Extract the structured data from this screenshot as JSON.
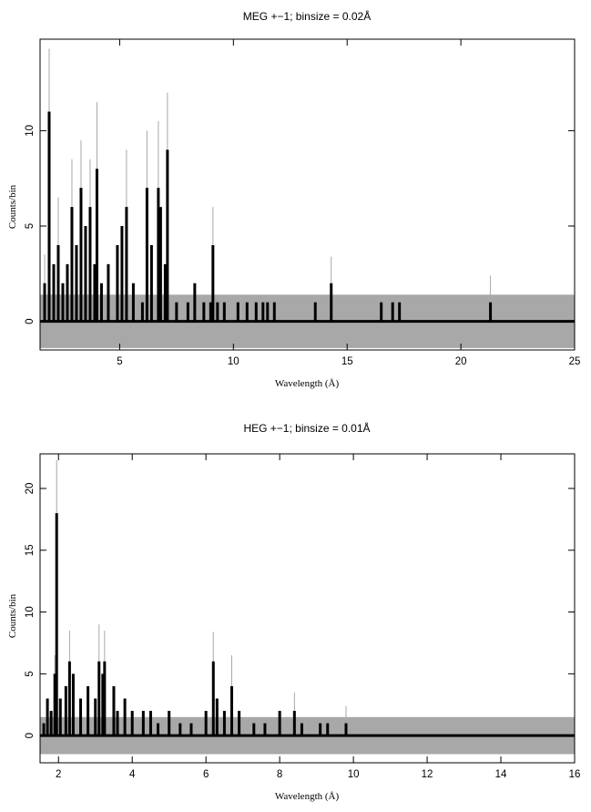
{
  "chart_data": [
    {
      "type": "line",
      "title": "MEG +−1; binsize = 0.02Å",
      "xlabel": "Wavelength (Å)",
      "ylabel": "Counts/bin",
      "xlim": [
        1.5,
        25
      ],
      "ylim": [
        -1.5,
        14.8
      ],
      "xticks": [
        5,
        10,
        15,
        20,
        25
      ],
      "yticks": [
        0,
        5,
        10
      ],
      "grid": false,
      "legend": "none",
      "series": [
        {
          "role": "counts",
          "style": "black step histogram",
          "points": [
            [
              1.7,
              2
            ],
            [
              1.9,
              11
            ],
            [
              2.1,
              3
            ],
            [
              2.3,
              4
            ],
            [
              2.5,
              2
            ],
            [
              2.7,
              3
            ],
            [
              2.9,
              6
            ],
            [
              3.1,
              4
            ],
            [
              3.3,
              7
            ],
            [
              3.5,
              5
            ],
            [
              3.7,
              6
            ],
            [
              3.9,
              3
            ],
            [
              4.0,
              8
            ],
            [
              4.2,
              2
            ],
            [
              4.5,
              3
            ],
            [
              4.9,
              4
            ],
            [
              5.1,
              5
            ],
            [
              5.3,
              6
            ],
            [
              5.6,
              2
            ],
            [
              6.0,
              1
            ],
            [
              6.2,
              7
            ],
            [
              6.4,
              4
            ],
            [
              6.7,
              7
            ],
            [
              6.8,
              6
            ],
            [
              7.0,
              3
            ],
            [
              7.1,
              9
            ],
            [
              7.5,
              1
            ],
            [
              8.0,
              1
            ],
            [
              8.3,
              2
            ],
            [
              8.7,
              1
            ],
            [
              9.0,
              1
            ],
            [
              9.1,
              4
            ],
            [
              9.3,
              1
            ],
            [
              9.6,
              1
            ],
            [
              10.2,
              1
            ],
            [
              10.6,
              1
            ],
            [
              11.0,
              1
            ],
            [
              11.3,
              1
            ],
            [
              11.5,
              1
            ],
            [
              11.8,
              1
            ],
            [
              13.6,
              1
            ],
            [
              14.3,
              2
            ],
            [
              16.5,
              1
            ],
            [
              17.0,
              1
            ],
            [
              17.3,
              1
            ],
            [
              21.3,
              1
            ]
          ]
        },
        {
          "role": "background",
          "style": "grey band",
          "band": [
            -1.4,
            1.4
          ]
        },
        {
          "role": "error_bars",
          "style": "grey vertical lines",
          "points": [
            [
              1.7,
              3.5
            ],
            [
              1.9,
              14.3
            ],
            [
              2.3,
              6.5
            ],
            [
              2.9,
              8.5
            ],
            [
              3.3,
              9.5
            ],
            [
              3.7,
              8.5
            ],
            [
              4.0,
              11.5
            ],
            [
              5.3,
              9.0
            ],
            [
              6.2,
              10.0
            ],
            [
              6.7,
              10.5
            ],
            [
              7.1,
              12.0
            ],
            [
              9.1,
              6.0
            ],
            [
              14.3,
              3.4
            ],
            [
              21.3,
              2.4
            ]
          ]
        }
      ]
    },
    {
      "type": "line",
      "title": "HEG +−1; binsize = 0.01Å",
      "xlabel": "Wavelength (Å)",
      "ylabel": "Counts/bin",
      "xlim": [
        1.5,
        16
      ],
      "ylim": [
        -2.2,
        22.8
      ],
      "xticks": [
        2,
        4,
        6,
        8,
        10,
        12,
        14,
        16
      ],
      "yticks": [
        0,
        5,
        10,
        15,
        20
      ],
      "grid": false,
      "legend": "none",
      "series": [
        {
          "role": "counts",
          "style": "black step histogram",
          "points": [
            [
              1.6,
              1
            ],
            [
              1.7,
              3
            ],
            [
              1.8,
              2
            ],
            [
              1.9,
              5
            ],
            [
              1.95,
              18
            ],
            [
              2.05,
              3
            ],
            [
              2.2,
              4
            ],
            [
              2.3,
              6
            ],
            [
              2.4,
              5
            ],
            [
              2.6,
              3
            ],
            [
              2.8,
              4
            ],
            [
              3.0,
              3
            ],
            [
              3.1,
              6
            ],
            [
              3.2,
              5
            ],
            [
              3.25,
              6
            ],
            [
              3.5,
              4
            ],
            [
              3.6,
              2
            ],
            [
              3.8,
              3
            ],
            [
              4.0,
              2
            ],
            [
              4.3,
              2
            ],
            [
              4.5,
              2
            ],
            [
              4.7,
              1
            ],
            [
              5.0,
              2
            ],
            [
              5.3,
              1
            ],
            [
              5.6,
              1
            ],
            [
              6.0,
              2
            ],
            [
              6.2,
              6
            ],
            [
              6.3,
              3
            ],
            [
              6.5,
              2
            ],
            [
              6.7,
              4
            ],
            [
              6.9,
              2
            ],
            [
              7.3,
              1
            ],
            [
              7.6,
              1
            ],
            [
              8.0,
              2
            ],
            [
              8.4,
              2
            ],
            [
              8.6,
              1
            ],
            [
              9.1,
              1
            ],
            [
              9.3,
              1
            ],
            [
              9.8,
              1
            ]
          ]
        },
        {
          "role": "background",
          "style": "grey band",
          "band": [
            -1.5,
            1.5
          ]
        },
        {
          "role": "error_bars",
          "style": "grey vertical lines",
          "points": [
            [
              1.9,
              6.5
            ],
            [
              1.95,
              22.3
            ],
            [
              2.3,
              8.5
            ],
            [
              3.1,
              9.0
            ],
            [
              3.25,
              8.5
            ],
            [
              6.2,
              8.4
            ],
            [
              6.7,
              6.5
            ],
            [
              8.4,
              3.5
            ],
            [
              9.8,
              2.4
            ]
          ]
        }
      ]
    }
  ]
}
